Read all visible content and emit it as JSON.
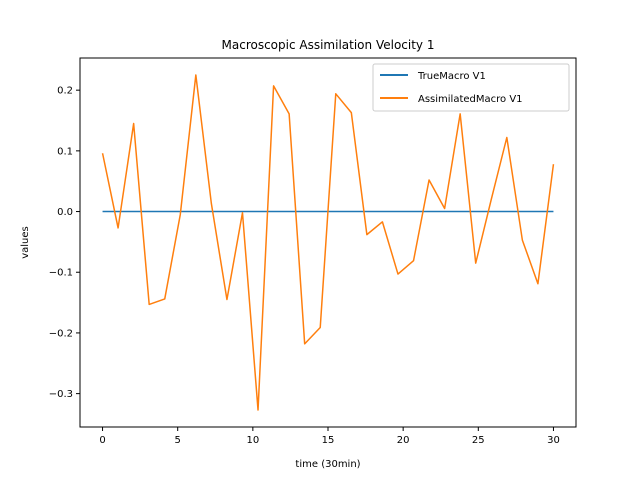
{
  "chart_data": {
    "type": "line",
    "title": "Macroscopic Assimilation Velocity 1",
    "xlabel": "time (30min)",
    "ylabel": "values",
    "xlim": [
      -1.5,
      31.5
    ],
    "ylim": [
      -0.355,
      0.253
    ],
    "xticks": [
      0,
      5,
      10,
      15,
      20,
      25,
      30
    ],
    "xtick_labels": [
      "0",
      "5",
      "10",
      "15",
      "20",
      "25",
      "30"
    ],
    "yticks": [
      -0.3,
      -0.2,
      -0.1,
      0.0,
      0.1,
      0.2
    ],
    "ytick_labels": [
      "−0.3",
      "−0.2",
      "−0.1",
      "0.0",
      "0.1",
      "0.2"
    ],
    "grid": false,
    "legend_position": "upper right",
    "x": [
      0,
      1.034,
      2.069,
      3.103,
      4.138,
      5.172,
      6.207,
      7.241,
      8.276,
      9.31,
      10.345,
      11.379,
      12.414,
      13.448,
      14.483,
      15.517,
      16.552,
      17.586,
      18.621,
      19.655,
      20.69,
      21.724,
      22.759,
      23.793,
      24.828,
      25.862,
      26.897,
      27.931,
      28.966,
      30
    ],
    "series": [
      {
        "name": "TrueMacro V1",
        "color": "#1f77b4",
        "values": [
          0,
          0,
          0,
          0,
          0,
          0,
          0,
          0,
          0,
          0,
          0,
          0,
          0,
          0,
          0,
          0,
          0,
          0,
          0,
          0,
          0,
          0,
          0,
          0,
          0,
          0,
          0,
          0,
          0,
          0
        ]
      },
      {
        "name": "AssimilatedMacro V1",
        "color": "#ff7f0e",
        "values": [
          0.096,
          -0.027,
          0.145,
          -0.153,
          -0.144,
          -0.005,
          0.225,
          0.013,
          -0.145,
          -0.002,
          -0.327,
          0.207,
          0.161,
          -0.218,
          -0.191,
          0.194,
          0.163,
          -0.038,
          -0.017,
          -0.103,
          -0.081,
          0.052,
          0.005,
          0.161,
          -0.085,
          0.02,
          0.122,
          -0.047,
          -0.119,
          0.078
        ]
      }
    ]
  }
}
